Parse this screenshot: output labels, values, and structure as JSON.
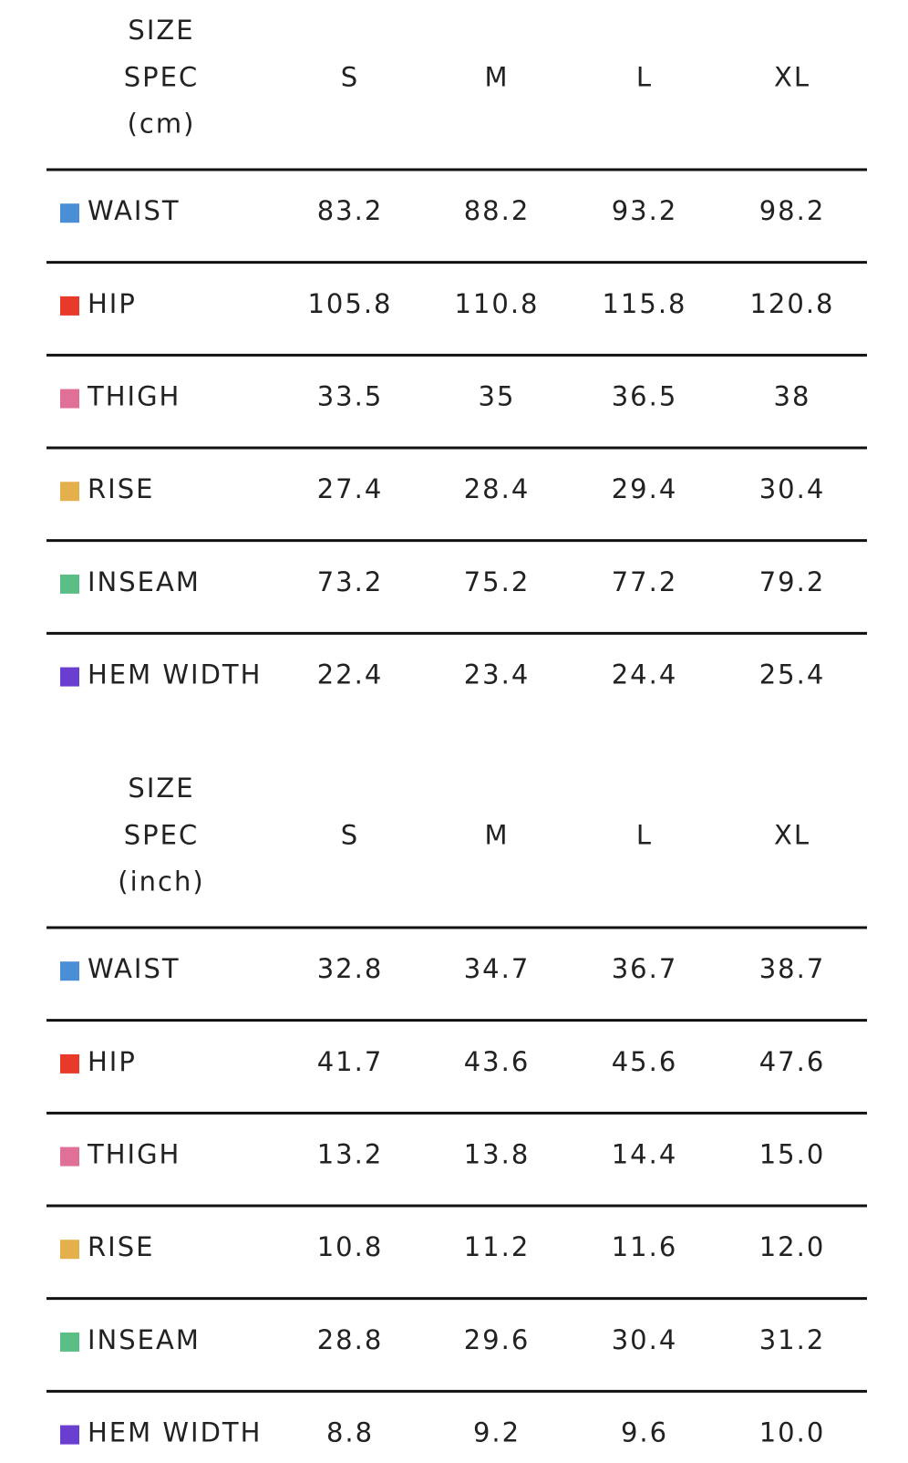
{
  "tables": [
    {
      "header": [
        "SIZE",
        "SPEC",
        "(cm)"
      ],
      "columns": [
        "S",
        "M",
        "L",
        "XL"
      ],
      "rows": [
        {
          "label": "WAIST",
          "color": "#4a8fd6",
          "values": [
            "83.2",
            "88.2",
            "93.2",
            "98.2"
          ]
        },
        {
          "label": "HIP",
          "color": "#e8392a",
          "values": [
            "105.8",
            "110.8",
            "115.8",
            "120.8"
          ]
        },
        {
          "label": "THIGH",
          "color": "#e07097",
          "values": [
            "33.5",
            "35",
            "36.5",
            "38"
          ]
        },
        {
          "label": "RISE",
          "color": "#e3b04b",
          "values": [
            "27.4",
            "28.4",
            "29.4",
            "30.4"
          ]
        },
        {
          "label": "INSEAM",
          "color": "#5bbf85",
          "values": [
            "73.2",
            "75.2",
            "77.2",
            "79.2"
          ]
        },
        {
          "label": "HEM WIDTH",
          "color": "#6a3fcf",
          "values": [
            "22.4",
            "23.4",
            "24.4",
            "25.4"
          ]
        }
      ]
    },
    {
      "header": [
        "SIZE",
        "SPEC",
        "(inch)"
      ],
      "columns": [
        "S",
        "M",
        "L",
        "XL"
      ],
      "rows": [
        {
          "label": "WAIST",
          "color": "#4a8fd6",
          "values": [
            "32.8",
            "34.7",
            "36.7",
            "38.7"
          ]
        },
        {
          "label": "HIP",
          "color": "#e8392a",
          "values": [
            "41.7",
            "43.6",
            "45.6",
            "47.6"
          ]
        },
        {
          "label": "THIGH",
          "color": "#e07097",
          "values": [
            "13.2",
            "13.8",
            "14.4",
            "15.0"
          ]
        },
        {
          "label": "RISE",
          "color": "#e3b04b",
          "values": [
            "10.8",
            "11.2",
            "11.6",
            "12.0"
          ]
        },
        {
          "label": "INSEAM",
          "color": "#5bbf85",
          "values": [
            "28.8",
            "29.6",
            "30.4",
            "31.2"
          ]
        },
        {
          "label": "HEM WIDTH",
          "color": "#6a3fcf",
          "values": [
            "8.8",
            "9.2",
            "9.6",
            "10.0"
          ]
        }
      ]
    }
  ]
}
